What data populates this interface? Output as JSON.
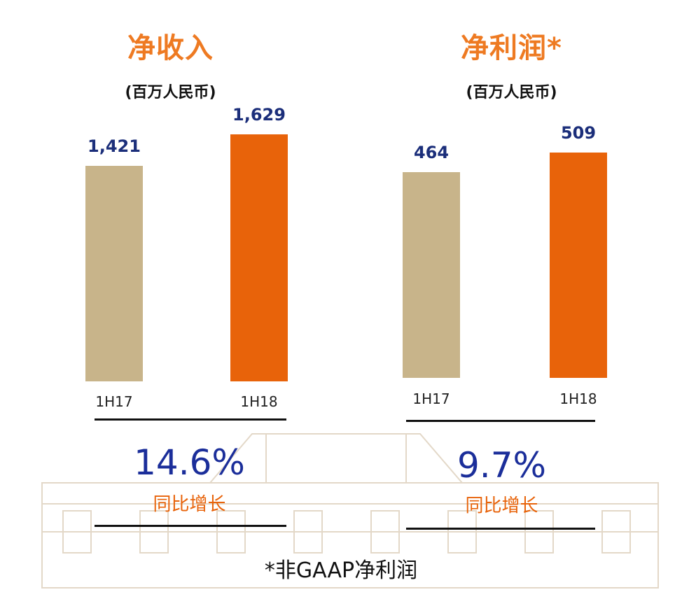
{
  "chart_data": [
    {
      "type": "bar",
      "title": "净收入",
      "subtitle": "(百万人民币)",
      "categories": [
        "1H17",
        "1H18"
      ],
      "values": [
        1421,
        1629
      ],
      "value_labels": [
        "1,421",
        "1,629"
      ],
      "ylim": [
        0,
        1629
      ],
      "grid": false,
      "colors": [
        "#c8b48a",
        "#e8630a"
      ],
      "growth": "14.6%",
      "growth_label": "同比增长"
    },
    {
      "type": "bar",
      "title": "净利润*",
      "subtitle": "(百万人民币)",
      "categories": [
        "1H17",
        "1H18"
      ],
      "values": [
        464,
        509
      ],
      "value_labels": [
        "464",
        "509"
      ],
      "ylim": [
        0,
        509
      ],
      "grid": false,
      "colors": [
        "#c8b48a",
        "#e8630a"
      ],
      "growth": "9.7%",
      "growth_label": "同比增长"
    }
  ],
  "footnote": "*非GAAP净利润"
}
